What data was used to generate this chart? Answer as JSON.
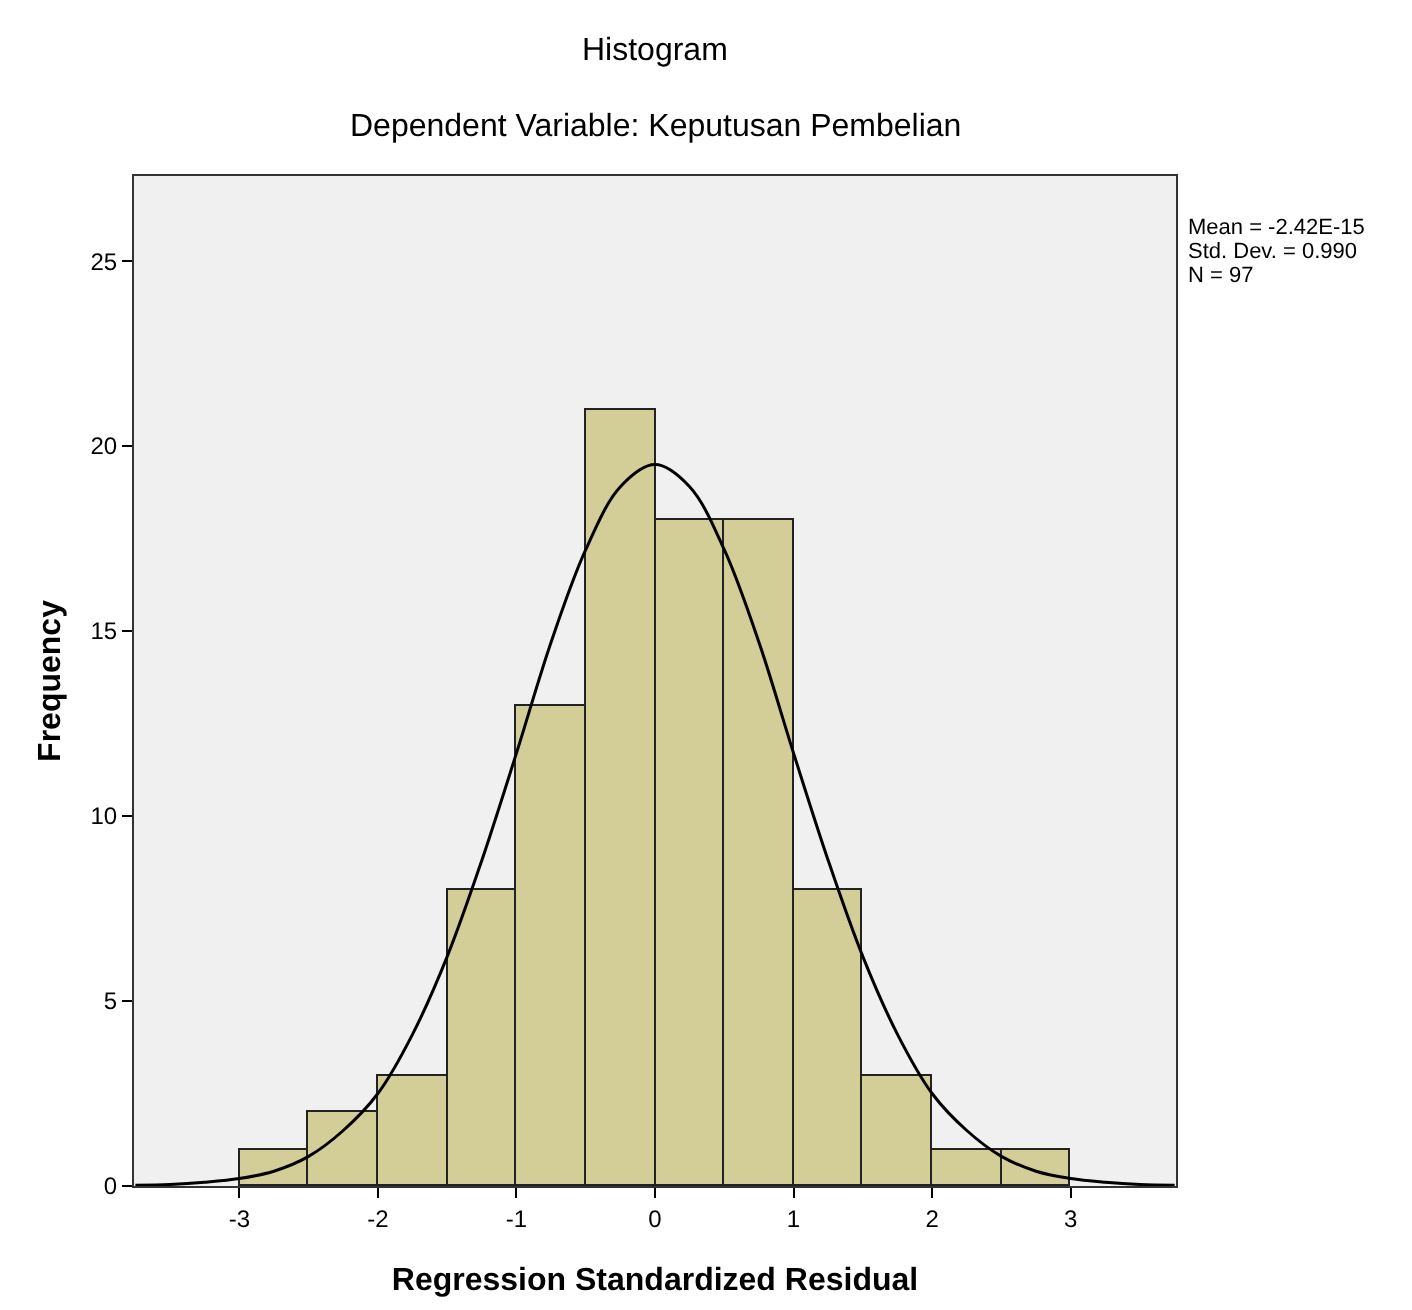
{
  "chart_data": {
    "type": "histogram",
    "title": "Histogram",
    "subtitle": "Dependent Variable: Keputusan Pembelian",
    "xlabel": "Regression Standardized Residual",
    "ylabel": "Frequency",
    "bins": [
      -3,
      -2.5,
      -2,
      -1.5,
      -1,
      -0.5,
      0,
      0.5,
      1,
      1.5,
      2,
      2.5,
      3
    ],
    "values": [
      1,
      2,
      3,
      8,
      13,
      21,
      18,
      18,
      8,
      3,
      1,
      1
    ],
    "color": "#d3ce97",
    "series": [
      {
        "type": "line",
        "color": "#000000",
        "x": [
          -3.75,
          -3.5,
          -3.25,
          -3,
          -2.75,
          -2.5,
          -2.25,
          -2,
          -1.75,
          -1.5,
          -1.25,
          -1,
          -0.75,
          -0.5,
          -0.25,
          0,
          0.25,
          0.5,
          0.75,
          1,
          1.25,
          1.5,
          1.75,
          2,
          2.25,
          2.5,
          2.75,
          3,
          3.25,
          3.5,
          3.75
        ],
        "values": [
          0.02,
          0.04,
          0.1,
          0.2,
          0.4,
          0.8,
          1.5,
          2.5,
          4.1,
          6.2,
          8.8,
          11.7,
          14.7,
          17.2,
          18.9,
          19.5,
          18.9,
          17.2,
          14.7,
          11.7,
          8.8,
          6.2,
          4.1,
          2.5,
          1.5,
          0.8,
          0.4,
          0.2,
          0.1,
          0.04,
          0.02
        ]
      }
    ],
    "annotations": [
      "Mean = -2.42E-15",
      "Std. Dev. = 0.990",
      "N = 97"
    ],
    "xlim": [
      -3.76,
      3.76
    ],
    "xticks": [
      -3,
      -2,
      -1,
      0,
      1,
      2,
      3
    ],
    "ylim": [
      0,
      27.3
    ],
    "yticks": [
      0,
      5,
      10,
      15,
      20,
      25
    ]
  }
}
